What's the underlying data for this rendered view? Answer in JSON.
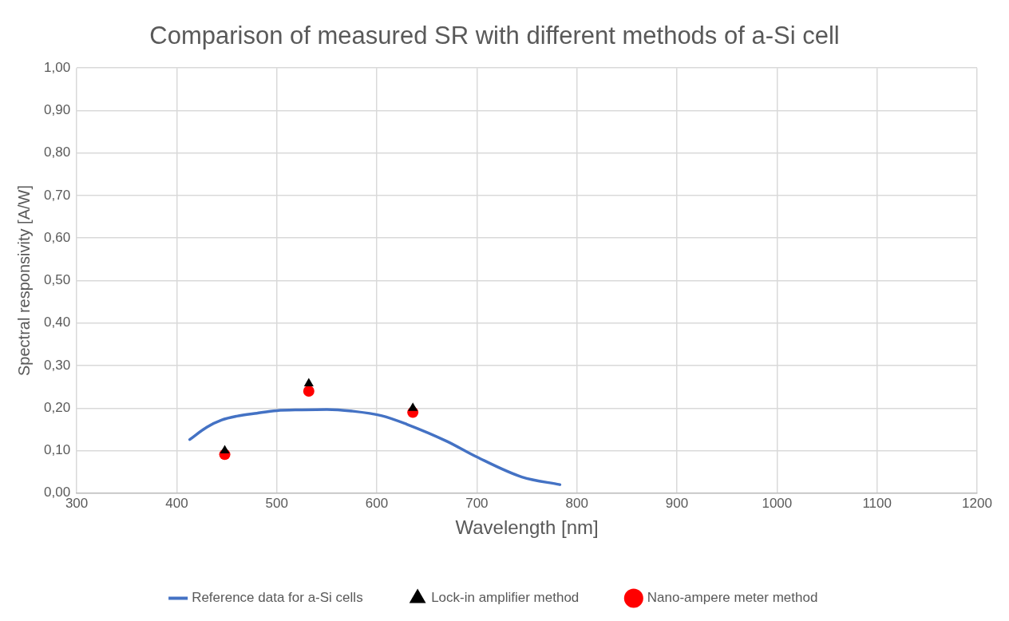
{
  "chart_data": {
    "type": "line",
    "title": "Comparison of measured SR with different methods of a-Si cell",
    "xlabel": "Wavelength [nm]",
    "ylabel": "Spectral responsivity [A/W]",
    "xlim": [
      300,
      1200
    ],
    "xticks": [
      300,
      400,
      500,
      600,
      700,
      800,
      900,
      1000,
      1100,
      1200
    ],
    "ylim": [
      0,
      1
    ],
    "yticks": [
      {
        "value": 0,
        "label": "0,00"
      },
      {
        "value": 0.1,
        "label": "0,10"
      },
      {
        "value": 0.2,
        "label": "0,20"
      },
      {
        "value": 0.3,
        "label": "0,30"
      },
      {
        "value": 0.4,
        "label": "0,40"
      },
      {
        "value": 0.5,
        "label": "0,50"
      },
      {
        "value": 0.6,
        "label": "0,60"
      },
      {
        "value": 0.7,
        "label": "0,70"
      },
      {
        "value": 0.8,
        "label": "0,80"
      },
      {
        "value": 0.9,
        "label": "0,90"
      },
      {
        "value": 1,
        "label": "1,00"
      }
    ],
    "grid": true,
    "legend": "bottom",
    "series": [
      {
        "name": "Reference data for a-Si cells",
        "type": "line",
        "marker": "none",
        "line_style": "solid",
        "color": "#4472c4",
        "x": [
          413,
          430,
          445,
          460,
          480,
          500,
          525,
          550,
          575,
          605,
          630,
          670,
          700,
          745,
          783
        ],
        "values": [
          0.126,
          0.155,
          0.172,
          0.181,
          0.188,
          0.194,
          0.196,
          0.197,
          0.193,
          0.182,
          0.162,
          0.122,
          0.085,
          0.038,
          0.02
        ]
      },
      {
        "name": "Lock-in amplifier method",
        "type": "scatter",
        "marker": "triangle",
        "color": "#000000",
        "x": [
          448,
          532,
          636
        ],
        "values": [
          0.1,
          0.258,
          0.2
        ]
      },
      {
        "name": "Nano-ampere meter method",
        "type": "scatter",
        "marker": "circle",
        "color": "#ff0000",
        "x": [
          448,
          532,
          636
        ],
        "values": [
          0.091,
          0.24,
          0.19
        ]
      }
    ]
  }
}
